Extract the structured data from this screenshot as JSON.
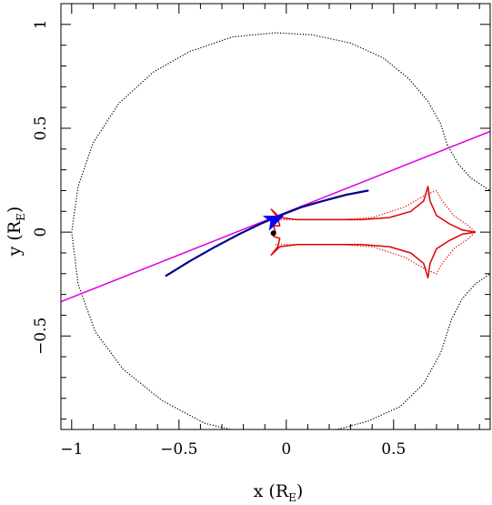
{
  "chart_data": {
    "type": "line",
    "title": "",
    "xlabel": {
      "main": "x (R",
      "sub": "E",
      "close": ")"
    },
    "ylabel": {
      "main": "y (R",
      "sub": "E",
      "close": ")"
    },
    "xlim": [
      -1.05,
      0.95
    ],
    "ylim": [
      -0.95,
      1.1
    ],
    "x_ticks": [
      {
        "value": -1,
        "label": "−1"
      },
      {
        "value": -0.5,
        "label": "−0.5"
      },
      {
        "value": 0,
        "label": "0"
      },
      {
        "value": 0.5,
        "label": "0.5"
      }
    ],
    "y_ticks": [
      {
        "value": -0.5,
        "label": "−0.5"
      },
      {
        "value": 0,
        "label": "0"
      },
      {
        "value": 0.5,
        "label": "0.5"
      },
      {
        "value": 1,
        "label": "1"
      }
    ],
    "minor_x_step": 0.1,
    "minor_y_step": 0.1,
    "grid": false,
    "legend": "none",
    "colors": {
      "critical_curve": "#000000",
      "caustic": "#e00000",
      "source_line": "#e000e0",
      "trajectory": "#00008b",
      "arrow": "#0000ff",
      "source_dot": "#000000"
    },
    "series": [
      {
        "kind": "critical_curve_main",
        "style": "dotted",
        "points": [
          [
            0.75,
            0.42
          ],
          [
            0.72,
            0.52
          ],
          [
            0.66,
            0.63
          ],
          [
            0.57,
            0.74
          ],
          [
            0.45,
            0.84
          ],
          [
            0.3,
            0.91
          ],
          [
            0.12,
            0.95
          ],
          [
            -0.05,
            0.96
          ],
          [
            -0.25,
            0.94
          ],
          [
            -0.45,
            0.87
          ],
          [
            -0.62,
            0.77
          ],
          [
            -0.78,
            0.62
          ],
          [
            -0.9,
            0.43
          ],
          [
            -0.97,
            0.22
          ],
          [
            -1.0,
            0.0
          ],
          [
            -0.97,
            -0.25
          ],
          [
            -0.89,
            -0.48
          ],
          [
            -0.76,
            -0.66
          ],
          [
            -0.58,
            -0.81
          ],
          [
            -0.38,
            -0.92
          ],
          [
            -0.18,
            -0.97
          ],
          [
            0.02,
            -0.98
          ],
          [
            0.2,
            -0.96
          ],
          [
            0.38,
            -0.91
          ],
          [
            0.53,
            -0.84
          ],
          [
            0.64,
            -0.73
          ],
          [
            0.72,
            -0.58
          ],
          [
            0.77,
            -0.42
          ],
          [
            0.82,
            -0.32
          ],
          [
            0.88,
            -0.25
          ],
          [
            0.95,
            -0.2
          ]
        ]
      },
      {
        "kind": "critical_curve_branch",
        "style": "dotted",
        "points": [
          [
            0.75,
            0.42
          ],
          [
            0.8,
            0.33
          ],
          [
            0.86,
            0.26
          ],
          [
            0.95,
            0.2
          ]
        ]
      },
      {
        "kind": "critical_curve_inner",
        "style": "dotted",
        "points": [
          [
            -0.05,
            0.06
          ],
          [
            0.05,
            0.06
          ],
          [
            0.15,
            0.06
          ],
          [
            0.25,
            0.06
          ],
          [
            0.4,
            0.07
          ],
          [
            0.55,
            0.12
          ],
          [
            0.65,
            0.18
          ],
          [
            0.7,
            0.2
          ],
          [
            0.72,
            0.16
          ],
          [
            0.78,
            0.08
          ],
          [
            0.85,
            0.03
          ],
          [
            0.88,
            0.0
          ],
          [
            0.85,
            -0.03
          ],
          [
            0.78,
            -0.08
          ],
          [
            0.72,
            -0.16
          ],
          [
            0.7,
            -0.2
          ],
          [
            0.65,
            -0.18
          ],
          [
            0.55,
            -0.12
          ],
          [
            0.4,
            -0.07
          ],
          [
            0.25,
            -0.06
          ],
          [
            0.15,
            -0.06
          ],
          [
            0.05,
            -0.06
          ],
          [
            -0.05,
            -0.06
          ]
        ]
      },
      {
        "kind": "caustic",
        "style": "solid",
        "points": [
          [
            -0.07,
            -0.11
          ],
          [
            -0.04,
            -0.07
          ],
          [
            -0.03,
            -0.03
          ],
          [
            -0.06,
            -0.02
          ],
          [
            -0.05,
            0.0
          ],
          [
            -0.06,
            0.03
          ],
          [
            -0.03,
            0.03
          ],
          [
            -0.04,
            0.07
          ],
          [
            -0.07,
            0.11
          ],
          [
            -0.03,
            0.07
          ],
          [
            0.05,
            0.06
          ],
          [
            0.2,
            0.06
          ],
          [
            0.35,
            0.06
          ],
          [
            0.48,
            0.07
          ],
          [
            0.58,
            0.1
          ],
          [
            0.64,
            0.15
          ],
          [
            0.66,
            0.22
          ],
          [
            0.67,
            0.15
          ],
          [
            0.7,
            0.08
          ],
          [
            0.76,
            0.04
          ],
          [
            0.82,
            0.01
          ],
          [
            0.88,
            0.0
          ],
          [
            0.82,
            -0.01
          ],
          [
            0.76,
            -0.04
          ],
          [
            0.7,
            -0.08
          ],
          [
            0.67,
            -0.15
          ],
          [
            0.66,
            -0.22
          ],
          [
            0.64,
            -0.15
          ],
          [
            0.58,
            -0.1
          ],
          [
            0.48,
            -0.07
          ],
          [
            0.35,
            -0.06
          ],
          [
            0.2,
            -0.06
          ],
          [
            0.05,
            -0.06
          ],
          [
            -0.03,
            -0.07
          ],
          [
            -0.07,
            -0.11
          ]
        ]
      },
      {
        "kind": "source_line",
        "style": "solid",
        "points": [
          [
            -1.05,
            -0.335
          ],
          [
            0.95,
            0.485
          ]
        ]
      },
      {
        "kind": "trajectory",
        "style": "solid",
        "points": [
          [
            -0.56,
            -0.21
          ],
          [
            -0.45,
            -0.14
          ],
          [
            -0.33,
            -0.07
          ],
          [
            -0.22,
            -0.01
          ],
          [
            -0.12,
            0.04
          ],
          [
            -0.03,
            0.08
          ],
          [
            0.07,
            0.12
          ],
          [
            0.17,
            0.15
          ],
          [
            0.28,
            0.18
          ],
          [
            0.38,
            0.2
          ]
        ]
      },
      {
        "kind": "source_dot",
        "style": "marker",
        "points": [
          [
            -0.06,
            -0.005
          ]
        ]
      }
    ],
    "arrow": {
      "tip": [
        -0.01,
        0.08
      ],
      "from": [
        -0.1,
        0.04
      ]
    }
  }
}
